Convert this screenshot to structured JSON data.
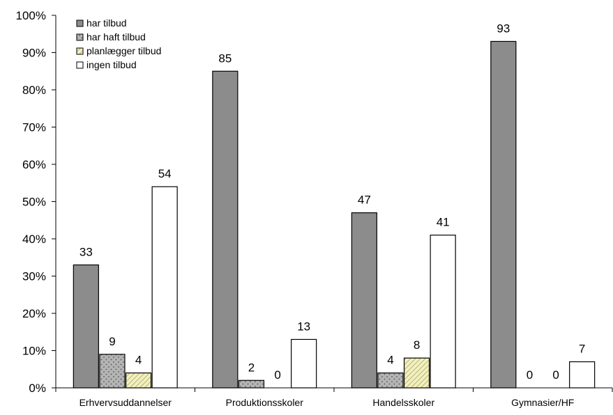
{
  "chart_data": {
    "type": "bar",
    "title": "",
    "xlabel": "",
    "ylabel": "",
    "ylim": [
      0,
      100
    ],
    "ytick_step": 10,
    "ytick_suffix": "%",
    "grid": false,
    "legend_position": "top-left",
    "categories": [
      "Erhvervsuddannelser",
      "Produktionsskoler",
      "Handelsskoler",
      "Gymnasier/HF"
    ],
    "series": [
      {
        "name": "har tilbud",
        "values": [
          33,
          85,
          47,
          93
        ],
        "color": "#8c8c8c",
        "pattern": "solid"
      },
      {
        "name": "har haft tilbud",
        "values": [
          9,
          2,
          4,
          0
        ],
        "color": "#b4b4b4",
        "pattern": "dots"
      },
      {
        "name": "planlægger tilbud",
        "values": [
          4,
          0,
          8,
          0
        ],
        "color": "#f2f0c0",
        "pattern": "diagonal"
      },
      {
        "name": "ingen tilbud",
        "values": [
          54,
          13,
          41,
          7
        ],
        "color": "#ffffff",
        "pattern": "solid"
      }
    ]
  }
}
